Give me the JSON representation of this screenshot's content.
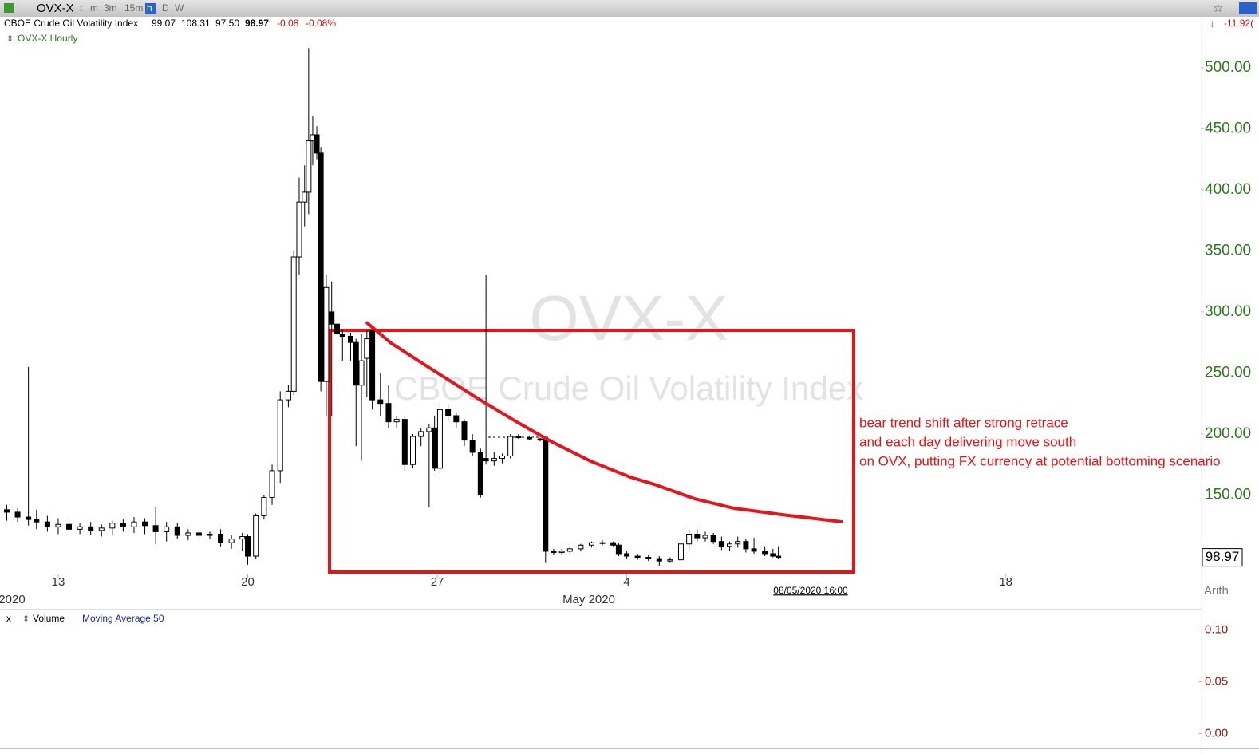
{
  "toolbar": {
    "symbol": "OVX-X",
    "timeframes": [
      "t",
      "m",
      "3m",
      "15m",
      "h",
      "D",
      "W"
    ]
  },
  "quote": {
    "name": "CBOE Crude Oil Volatility Index",
    "open": "99.07",
    "high": "108.31",
    "low": "97.50",
    "last": "98.97",
    "change": "-0.08",
    "change_pct": "-0.08%",
    "right_change": "-11.92("
  },
  "chart_data": {
    "type": "candlestick",
    "title": "OVX-X Hourly",
    "watermark": [
      "OVX-X",
      "CBOE Crude Oil Volatility Index"
    ],
    "up_color": "#ffffff",
    "down_color": "#000000",
    "axis_color": "#2b7a1e",
    "candles": [
      {
        "x": -1.9,
        "open": 138,
        "high": 142,
        "low": 129,
        "close": 136
      },
      {
        "x": -1.5,
        "open": 136,
        "high": 139,
        "low": 128,
        "close": 132
      },
      {
        "x": -1.1,
        "open": 132,
        "high": 255,
        "low": 125,
        "close": 130
      },
      {
        "x": -0.8,
        "open": 130,
        "high": 138,
        "low": 122,
        "close": 128
      },
      {
        "x": -0.4,
        "open": 128,
        "high": 133,
        "low": 120,
        "close": 124
      },
      {
        "x": 0.0,
        "open": 124,
        "high": 131,
        "low": 118,
        "close": 126
      },
      {
        "x": 0.4,
        "open": 126,
        "high": 130,
        "low": 119,
        "close": 122
      },
      {
        "x": 0.8,
        "open": 122,
        "high": 127,
        "low": 118,
        "close": 124
      },
      {
        "x": 1.2,
        "open": 124,
        "high": 128,
        "low": 117,
        "close": 121
      },
      {
        "x": 1.6,
        "open": 121,
        "high": 126,
        "low": 116,
        "close": 123
      },
      {
        "x": 2.0,
        "open": 123,
        "high": 129,
        "low": 117,
        "close": 127
      },
      {
        "x": 2.4,
        "open": 127,
        "high": 130,
        "low": 120,
        "close": 124
      },
      {
        "x": 2.8,
        "open": 124,
        "high": 132,
        "low": 119,
        "close": 128
      },
      {
        "x": 3.2,
        "open": 128,
        "high": 131,
        "low": 118,
        "close": 125
      },
      {
        "x": 3.6,
        "open": 125,
        "high": 140,
        "low": 110,
        "close": 120
      },
      {
        "x": 4.0,
        "open": 120,
        "high": 128,
        "low": 112,
        "close": 124
      },
      {
        "x": 4.4,
        "open": 124,
        "high": 127,
        "low": 114,
        "close": 117
      },
      {
        "x": 4.8,
        "open": 117,
        "high": 122,
        "low": 113,
        "close": 119
      },
      {
        "x": 5.2,
        "open": 119,
        "high": 121,
        "low": 114,
        "close": 117
      },
      {
        "x": 5.6,
        "open": 117,
        "high": 120,
        "low": 114,
        "close": 118
      },
      {
        "x": 6.0,
        "open": 118,
        "high": 122,
        "low": 108,
        "close": 111
      },
      {
        "x": 6.4,
        "open": 111,
        "high": 117,
        "low": 106,
        "close": 114
      },
      {
        "x": 6.8,
        "open": 114,
        "high": 119,
        "low": 104,
        "close": 116
      },
      {
        "x": 7.0,
        "open": 116,
        "high": 118,
        "low": 93,
        "close": 100
      },
      {
        "x": 7.3,
        "open": 100,
        "high": 135,
        "low": 98,
        "close": 133
      },
      {
        "x": 7.6,
        "open": 133,
        "high": 150,
        "low": 130,
        "close": 148
      },
      {
        "x": 7.9,
        "open": 148,
        "high": 175,
        "low": 142,
        "close": 170
      },
      {
        "x": 8.2,
        "open": 170,
        "high": 235,
        "low": 160,
        "close": 228
      },
      {
        "x": 8.5,
        "open": 228,
        "high": 240,
        "low": 222,
        "close": 235
      },
      {
        "x": 8.7,
        "open": 235,
        "high": 350,
        "low": 232,
        "close": 345
      },
      {
        "x": 8.9,
        "open": 345,
        "high": 410,
        "low": 330,
        "close": 390
      },
      {
        "x": 9.1,
        "open": 390,
        "high": 420,
        "low": 370,
        "close": 398
      },
      {
        "x": 9.25,
        "open": 398,
        "high": 516,
        "low": 380,
        "close": 440
      },
      {
        "x": 9.4,
        "open": 440,
        "high": 460,
        "low": 420,
        "close": 445
      },
      {
        "x": 9.55,
        "open": 445,
        "high": 452,
        "low": 425,
        "close": 430
      },
      {
        "x": 9.7,
        "open": 430,
        "high": 435,
        "low": 235,
        "close": 243
      },
      {
        "x": 9.9,
        "open": 243,
        "high": 330,
        "low": 215,
        "close": 320
      },
      {
        "x": 10.1,
        "open": 300,
        "high": 325,
        "low": 215,
        "close": 290
      },
      {
        "x": 10.3,
        "open": 290,
        "high": 295,
        "low": 240,
        "close": 282
      },
      {
        "x": 10.5,
        "open": 282,
        "high": 286,
        "low": 260,
        "close": 280
      },
      {
        "x": 10.8,
        "open": 280,
        "high": 283,
        "low": 260,
        "close": 275
      },
      {
        "x": 11.0,
        "open": 275,
        "high": 278,
        "low": 190,
        "close": 240
      },
      {
        "x": 11.2,
        "open": 240,
        "high": 282,
        "low": 178,
        "close": 260
      },
      {
        "x": 11.4,
        "open": 262,
        "high": 285,
        "low": 230,
        "close": 278
      },
      {
        "x": 11.6,
        "open": 285,
        "high": 288,
        "low": 220,
        "close": 228
      },
      {
        "x": 11.9,
        "open": 228,
        "high": 250,
        "low": 215,
        "close": 225
      },
      {
        "x": 12.2,
        "open": 225,
        "high": 240,
        "low": 205,
        "close": 210
      },
      {
        "x": 12.5,
        "open": 210,
        "high": 215,
        "low": 205,
        "close": 212
      },
      {
        "x": 12.8,
        "open": 212,
        "high": 214,
        "low": 170,
        "close": 175
      },
      {
        "x": 13.1,
        "open": 175,
        "high": 200,
        "low": 172,
        "close": 198
      },
      {
        "x": 13.4,
        "open": 198,
        "high": 205,
        "low": 190,
        "close": 202
      },
      {
        "x": 13.7,
        "open": 202,
        "high": 208,
        "low": 140,
        "close": 205
      },
      {
        "x": 13.9,
        "open": 205,
        "high": 215,
        "low": 170,
        "close": 172
      },
      {
        "x": 14.1,
        "open": 172,
        "high": 225,
        "low": 168,
        "close": 220
      },
      {
        "x": 14.4,
        "open": 220,
        "high": 224,
        "low": 210,
        "close": 215
      },
      {
        "x": 14.7,
        "open": 215,
        "high": 218,
        "low": 205,
        "close": 210
      },
      {
        "x": 15.0,
        "open": 210,
        "high": 212,
        "low": 190,
        "close": 195
      },
      {
        "x": 15.3,
        "open": 195,
        "high": 200,
        "low": 182,
        "close": 185
      },
      {
        "x": 15.6,
        "open": 185,
        "high": 188,
        "low": 148,
        "close": 150
      },
      {
        "x": 15.8,
        "open": 180,
        "high": 330,
        "low": 175,
        "close": 178
      },
      {
        "x": 16.1,
        "open": 178,
        "high": 185,
        "low": 174,
        "close": 180
      },
      {
        "x": 16.4,
        "open": 180,
        "high": 184,
        "low": 176,
        "close": 182
      },
      {
        "x": 16.7,
        "open": 182,
        "high": 200,
        "low": 180,
        "close": 198
      },
      {
        "x": 17.0,
        "open": 198,
        "high": 200,
        "low": 196,
        "close": 197
      },
      {
        "x": 17.4,
        "open": 197,
        "high": 198,
        "low": 195,
        "close": 196
      },
      {
        "x": 17.8,
        "open": 196,
        "high": 197,
        "low": 194,
        "close": 195
      },
      {
        "x": 18.0,
        "open": 196,
        "high": 198,
        "low": 95,
        "close": 104
      },
      {
        "x": 18.3,
        "open": 104,
        "high": 106,
        "low": 101,
        "close": 103
      },
      {
        "x": 18.6,
        "open": 103,
        "high": 106,
        "low": 101,
        "close": 104
      },
      {
        "x": 18.9,
        "open": 104,
        "high": 107,
        "low": 102,
        "close": 106
      },
      {
        "x": 19.3,
        "open": 106,
        "high": 110,
        "low": 104,
        "close": 109
      },
      {
        "x": 19.7,
        "open": 109,
        "high": 112,
        "low": 107,
        "close": 111
      },
      {
        "x": 20.1,
        "open": 111,
        "high": 113,
        "low": 109,
        "close": 111
      },
      {
        "x": 20.5,
        "open": 111,
        "high": 112,
        "low": 108,
        "close": 109
      },
      {
        "x": 20.7,
        "open": 109,
        "high": 111,
        "low": 100,
        "close": 102
      },
      {
        "x": 21.0,
        "open": 102,
        "high": 104,
        "low": 98,
        "close": 100
      },
      {
        "x": 21.4,
        "open": 100,
        "high": 102,
        "low": 97,
        "close": 99
      },
      {
        "x": 21.8,
        "open": 99,
        "high": 101,
        "low": 96,
        "close": 98
      },
      {
        "x": 22.2,
        "open": 98,
        "high": 100,
        "low": 92,
        "close": 96
      },
      {
        "x": 22.6,
        "open": 96,
        "high": 99,
        "low": 95,
        "close": 97
      },
      {
        "x": 23.0,
        "open": 97,
        "high": 112,
        "low": 94,
        "close": 110
      },
      {
        "x": 23.3,
        "open": 110,
        "high": 122,
        "low": 105,
        "close": 118
      },
      {
        "x": 23.6,
        "open": 118,
        "high": 122,
        "low": 112,
        "close": 115
      },
      {
        "x": 23.9,
        "open": 115,
        "high": 120,
        "low": 112,
        "close": 117
      },
      {
        "x": 24.2,
        "open": 117,
        "high": 119,
        "low": 110,
        "close": 112
      },
      {
        "x": 24.5,
        "open": 112,
        "high": 116,
        "low": 105,
        "close": 108
      },
      {
        "x": 24.8,
        "open": 108,
        "high": 112,
        "low": 104,
        "close": 110
      },
      {
        "x": 25.1,
        "open": 110,
        "high": 116,
        "low": 107,
        "close": 112
      },
      {
        "x": 25.4,
        "open": 112,
        "high": 114,
        "low": 103,
        "close": 106
      },
      {
        "x": 25.7,
        "open": 106,
        "high": 115,
        "low": 102,
        "close": 104
      },
      {
        "x": 26.1,
        "open": 104,
        "high": 108,
        "low": 100,
        "close": 102
      },
      {
        "x": 26.4,
        "open": 102,
        "high": 106,
        "low": 99,
        "close": 100
      },
      {
        "x": 26.6,
        "open": 100,
        "high": 108,
        "low": 98,
        "close": 98.97
      }
    ],
    "trend_line": {
      "color": "#e8141c",
      "x": [
        11.41,
        12.29,
        13.76,
        15.53,
        17.0,
        18.19,
        19.66,
        21.13,
        22.02,
        23.49,
        24.96,
        26.73,
        28.94
      ],
      "values": [
        291,
        274.5,
        253.5,
        228.7,
        209.1,
        194.1,
        177.8,
        164.7,
        158.8,
        147.1,
        139.2,
        134,
        128.1
      ]
    },
    "annotation": [
      "bear trend shift after strong retrace",
      "and each day delivering move south",
      "on OVX, putting FX currency at potential bottoming scenario"
    ],
    "xlim": [
      -2.15,
      42.2
    ],
    "xticks": [
      {
        "value": 0,
        "label": "13"
      },
      {
        "value": 7,
        "label": "20"
      },
      {
        "value": 14,
        "label": "27"
      },
      {
        "value": 21,
        "label": "4"
      },
      {
        "value": 35,
        "label": "18"
      }
    ],
    "period_labels": [
      "2020",
      "May 2020"
    ],
    "cursor_label": "08/05/2020 16:00",
    "ylim": [
      85,
      541
    ],
    "yticks": [
      {
        "value": 150,
        "label": "150.00"
      },
      {
        "value": 200,
        "label": "200.00"
      },
      {
        "value": 250,
        "label": "250.00"
      },
      {
        "value": 300,
        "label": "300.00"
      },
      {
        "value": 350,
        "label": "350.00"
      },
      {
        "value": 400,
        "label": "400.00"
      },
      {
        "value": 450,
        "label": "450.00"
      },
      {
        "value": 500,
        "label": "500.00"
      }
    ],
    "last_price": 98.97,
    "scale_label": "Arith"
  },
  "volume_panel": {
    "close": "x",
    "legend": [
      "Volume",
      "Moving Average 50"
    ],
    "ylim": [
      -0.008,
      0.115
    ],
    "yticks": [
      {
        "value": 0.1,
        "label": "0.10"
      },
      {
        "value": 0.05,
        "label": "0.05"
      },
      {
        "value": 0,
        "label": "0.00"
      }
    ]
  }
}
